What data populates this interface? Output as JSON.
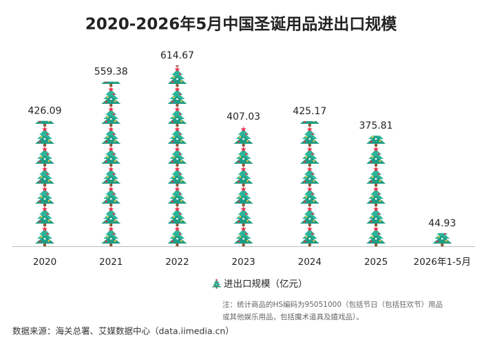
{
  "chart_data": {
    "type": "pictograph-bar",
    "title": "2020-2026年5月中国圣诞用品进出口规模",
    "categories": [
      "2020",
      "2021",
      "2022",
      "2023",
      "2024",
      "2025",
      "2026年1-5月"
    ],
    "series": [
      {
        "name": "进出口规模（亿元）",
        "color": "#2bb59a",
        "values": [
          426.09,
          559.38,
          614.67,
          407.03,
          425.17,
          375.81,
          44.93
        ]
      }
    ],
    "legend": "bottom",
    "note": [
      "注：统计商品的HS编码为95051000（包括节日（包括狂欢节）用品",
      "或其他娱乐用品，包括魔术道具及嬉戏品）。"
    ],
    "source": "数据来源：海关总署、艾媒数据中心（data.iimedia.cn）"
  }
}
